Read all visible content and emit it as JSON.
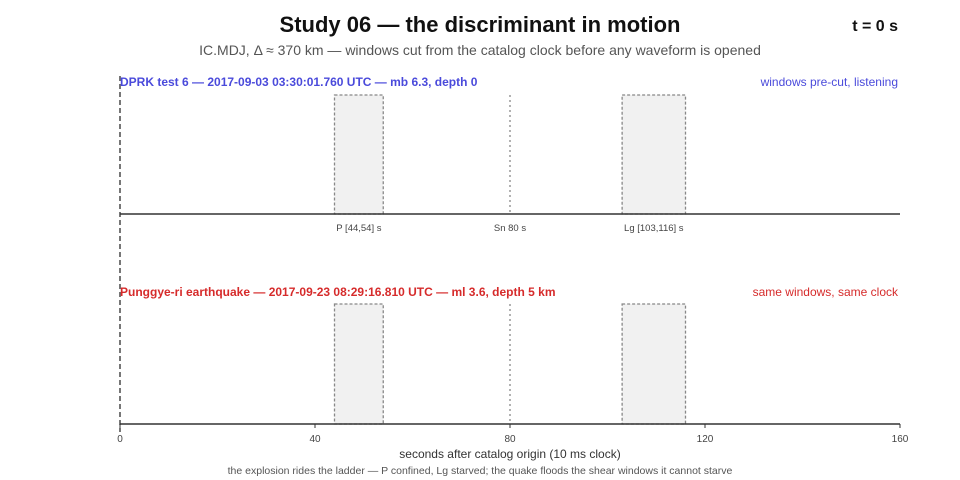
{
  "header": {
    "title": "Study 06 — the discriminant in motion",
    "clock": "t = 0 s",
    "subtitle": "IC.MDJ, Δ ≈ 370 km — windows cut from the catalog clock before any waveform is opened",
    "footnote": "the explosion rides the ladder — P confined, Lg starved; the quake floods the shear windows it cannot starve"
  },
  "colors": {
    "explosion": "#4a4adb",
    "quake": "#d62b2b",
    "axis": "#333333",
    "window_fill": "#f1f1f1",
    "window_edge": "#888888"
  },
  "chart_data": {
    "type": "timeline",
    "xlabel": "seconds after catalog origin (10 ms clock)",
    "xlim": [
      0,
      160
    ],
    "xticks": [
      0,
      40,
      80,
      120,
      160
    ],
    "cursor_t": 0,
    "windows": [
      {
        "label": "P [44,54] s",
        "start": 44,
        "end": 54
      },
      {
        "label": "Lg [103,116] s",
        "start": 103,
        "end": 116
      }
    ],
    "markers": [
      {
        "label": "Sn 80 s",
        "t": 80
      }
    ],
    "panels": [
      {
        "name": "DPRK test 6 — 2017-09-03 03:30:01.760 UTC — mb 6.3, depth 0",
        "status": "windows pre-cut, listening",
        "color_key": "explosion",
        "show_window_labels": true
      },
      {
        "name": "Punggye-ri earthquake — 2017-09-23 08:29:16.810 UTC — ml 3.6, depth 5 km",
        "status": "same windows, same clock",
        "color_key": "quake",
        "show_window_labels": false
      }
    ]
  }
}
